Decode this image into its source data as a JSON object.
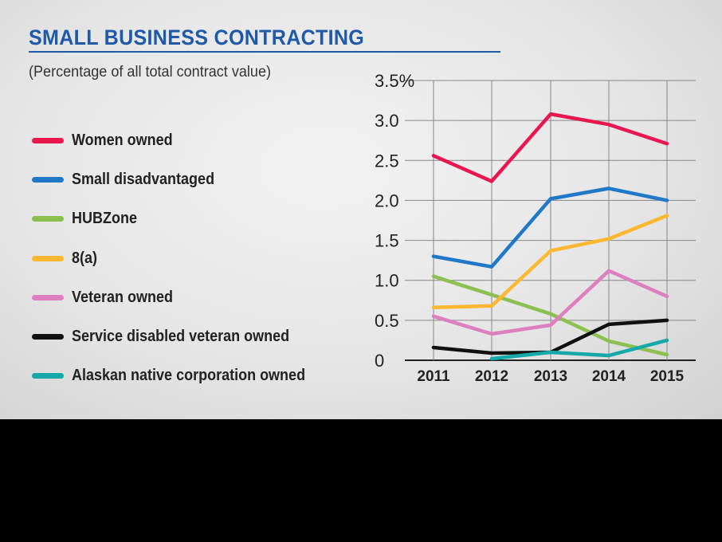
{
  "header": {
    "title": "SMALL BUSINESS CONTRACTING",
    "subtitle": "(Percentage of all total contract value)"
  },
  "chart_data": {
    "type": "line",
    "title": "SMALL BUSINESS CONTRACTING",
    "subtitle": "(Percentage of all total contract value)",
    "xlabel": "",
    "ylabel": "",
    "x": [
      "2011",
      "2012",
      "2013",
      "2014",
      "2015"
    ],
    "ylim": [
      0,
      3.5
    ],
    "yticks": [
      0,
      0.5,
      1.0,
      1.5,
      2.0,
      2.5,
      3.0,
      3.5
    ],
    "ytick_labels": [
      "0",
      "0.5",
      "1.0",
      "1.5",
      "2.0",
      "2.5",
      "3.0",
      "3.5%"
    ],
    "grid": true,
    "legend_position": "left",
    "series": [
      {
        "name": "Women owned",
        "color": "#e8174f",
        "values": [
          2.56,
          2.24,
          3.08,
          2.95,
          2.71
        ]
      },
      {
        "name": "Small disadvantaged",
        "color": "#1f78c8",
        "values": [
          1.3,
          1.17,
          2.02,
          2.15,
          2.0
        ]
      },
      {
        "name": "HUBZone",
        "color": "#8cc152",
        "values": [
          1.05,
          0.82,
          0.58,
          0.24,
          0.07
        ]
      },
      {
        "name": "8(a)",
        "color": "#fbb830",
        "values": [
          0.66,
          0.68,
          1.37,
          1.52,
          1.81
        ]
      },
      {
        "name": "Veteran owned",
        "color": "#de7fc0",
        "values": [
          0.55,
          0.33,
          0.44,
          1.12,
          0.8
        ]
      },
      {
        "name": "Service disabled veteran owned",
        "color": "#111111",
        "values": [
          0.16,
          0.09,
          0.1,
          0.45,
          0.5
        ]
      },
      {
        "name": "Alaskan native corporation owned",
        "color": "#14a8a8",
        "values": [
          null,
          0.02,
          0.1,
          0.06,
          0.25
        ]
      }
    ]
  }
}
